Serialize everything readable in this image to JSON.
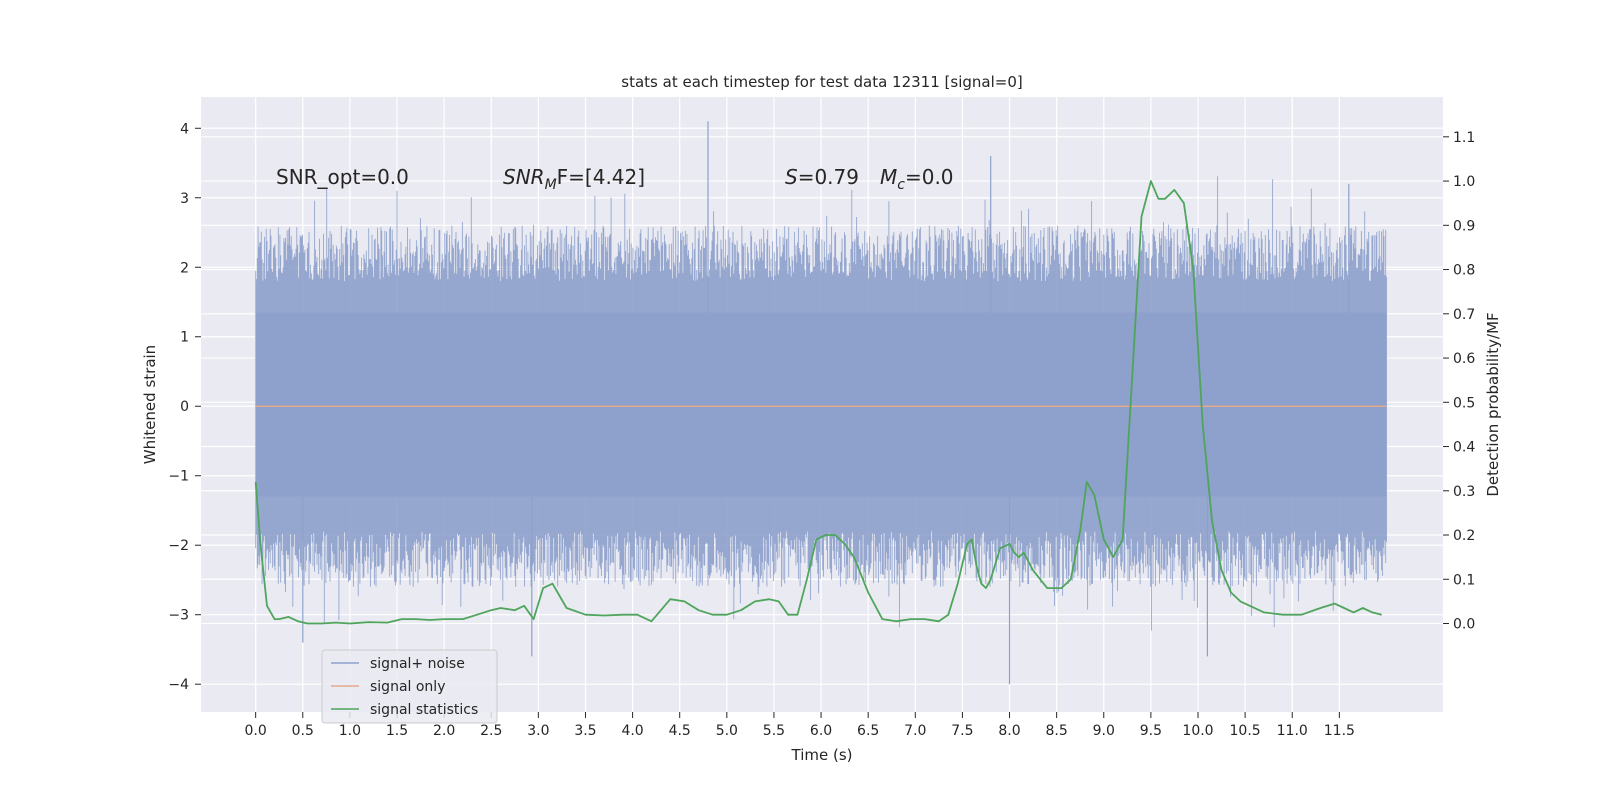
{
  "chart_data": {
    "type": "line",
    "title": "stats at each timestep for test data 12311 [signal=0]",
    "xlabel": "Time (s)",
    "ylabel_left": "Whitened strain",
    "ylabel_right": "Detection probability/MF",
    "xlim": [
      -0.58,
      12.6
    ],
    "ylim_left": [
      -4.4,
      4.45
    ],
    "ylim_right": [
      -0.2,
      1.19
    ],
    "x_ticks": [
      0.0,
      0.5,
      1.0,
      1.5,
      2.0,
      2.5,
      3.0,
      3.5,
      4.0,
      4.5,
      5.0,
      5.5,
      6.0,
      6.5,
      7.0,
      7.5,
      8.0,
      8.5,
      9.0,
      9.5,
      10.0,
      10.5,
      11.0,
      11.5
    ],
    "x_tick_labels": [
      "0.0",
      "0.5",
      "1.0",
      "1.5",
      "2.0",
      "2.5",
      "3.0",
      "3.5",
      "4.0",
      "4.5",
      "5.0",
      "5.5",
      "6.0",
      "6.5",
      "7.0",
      "7.5",
      "8.0",
      "8.5",
      "9.0",
      "9.5",
      "10.0",
      "10.5",
      "11.0",
      "11.5"
    ],
    "y_left_ticks": [
      -4,
      -3,
      -2,
      -1,
      0,
      1,
      2,
      3,
      4
    ],
    "y_left_tick_labels": [
      "−4",
      "−3",
      "−2",
      "−1",
      "0",
      "1",
      "2",
      "3",
      "4"
    ],
    "y_right_ticks": [
      0.0,
      0.1,
      0.2,
      0.3,
      0.4,
      0.5,
      0.6,
      0.7,
      0.8,
      0.9,
      1.0,
      1.1
    ],
    "y_right_tick_labels": [
      "0.0",
      "0.1",
      "0.2",
      "0.3",
      "0.4",
      "0.5",
      "0.6",
      "0.7",
      "0.8",
      "0.9",
      "1.0",
      "1.1"
    ],
    "grid": true,
    "legend_position": "lower-left",
    "annotations": {
      "snr_opt": "SNR_opt=0.0",
      "snr_mf_prefix": "SNR",
      "snr_mf_sub": "M",
      "snr_mf_suffix": "F=[4.42]",
      "s_var": "S",
      "s_value": "=0.79",
      "mc_var": "M",
      "mc_sub": "c",
      "mc_value": "=0.0"
    },
    "series": [
      {
        "name": "signal+ noise",
        "axis": "left",
        "color": "#8da0cb",
        "noise_range": [
          0.0,
          12.0
        ],
        "core_band": [
          -1.3,
          1.35
        ],
        "typical_peak_range": [
          1.8,
          2.6
        ],
        "notable_peaks": [
          {
            "x": 4.8,
            "y": 4.1
          },
          {
            "x": 7.8,
            "y": 3.6
          },
          {
            "x": 11.6,
            "y": 3.2
          },
          {
            "x": 8.0,
            "y": -4.0
          },
          {
            "x": 10.1,
            "y": -3.6
          },
          {
            "x": 2.93,
            "y": -3.6
          },
          {
            "x": 0.5,
            "y": -3.4
          }
        ]
      },
      {
        "name": "signal only",
        "axis": "left",
        "color": "#e5a98d",
        "x": [
          0.0,
          12.0
        ],
        "y": [
          0.0,
          0.0
        ]
      },
      {
        "name": "signal statistics",
        "axis": "right",
        "color": "#4ea55b",
        "x": [
          0.0,
          0.05,
          0.12,
          0.2,
          0.25,
          0.35,
          0.45,
          0.55,
          0.7,
          0.85,
          1.0,
          1.2,
          1.4,
          1.55,
          1.7,
          1.85,
          2.0,
          2.2,
          2.35,
          2.5,
          2.6,
          2.75,
          2.85,
          2.95,
          3.05,
          3.15,
          3.3,
          3.5,
          3.7,
          3.9,
          4.05,
          4.2,
          4.3,
          4.4,
          4.55,
          4.7,
          4.85,
          5.0,
          5.15,
          5.3,
          5.45,
          5.55,
          5.65,
          5.75,
          5.85,
          5.95,
          6.05,
          6.15,
          6.25,
          6.35,
          6.5,
          6.65,
          6.8,
          6.95,
          7.1,
          7.25,
          7.35,
          7.45,
          7.55,
          7.6,
          7.65,
          7.7,
          7.75,
          7.8,
          7.9,
          8.0,
          8.05,
          8.1,
          8.15,
          8.25,
          8.4,
          8.55,
          8.65,
          8.75,
          8.82,
          8.9,
          9.0,
          9.1,
          9.2,
          9.3,
          9.4,
          9.5,
          9.58,
          9.65,
          9.75,
          9.85,
          9.95,
          10.05,
          10.15,
          10.25,
          10.35,
          10.45,
          10.55,
          10.7,
          10.9,
          11.1,
          11.3,
          11.45,
          11.55,
          11.65,
          11.75,
          11.85,
          11.95
        ],
        "y": [
          0.32,
          0.18,
          0.04,
          0.01,
          0.01,
          0.015,
          0.005,
          0.0,
          0.0,
          0.002,
          0.0,
          0.003,
          0.002,
          0.01,
          0.01,
          0.008,
          0.01,
          0.01,
          0.02,
          0.03,
          0.035,
          0.03,
          0.04,
          0.01,
          0.08,
          0.09,
          0.035,
          0.02,
          0.018,
          0.02,
          0.02,
          0.005,
          0.03,
          0.055,
          0.05,
          0.03,
          0.02,
          0.02,
          0.03,
          0.05,
          0.055,
          0.05,
          0.02,
          0.02,
          0.1,
          0.19,
          0.2,
          0.2,
          0.18,
          0.15,
          0.07,
          0.01,
          0.005,
          0.01,
          0.01,
          0.005,
          0.02,
          0.09,
          0.18,
          0.19,
          0.13,
          0.09,
          0.08,
          0.1,
          0.17,
          0.18,
          0.16,
          0.15,
          0.16,
          0.12,
          0.08,
          0.08,
          0.1,
          0.21,
          0.32,
          0.29,
          0.19,
          0.15,
          0.19,
          0.55,
          0.92,
          1.0,
          0.96,
          0.96,
          0.98,
          0.95,
          0.8,
          0.45,
          0.23,
          0.12,
          0.07,
          0.05,
          0.04,
          0.025,
          0.02,
          0.02,
          0.035,
          0.045,
          0.035,
          0.025,
          0.035,
          0.025,
          0.02
        ]
      }
    ]
  }
}
